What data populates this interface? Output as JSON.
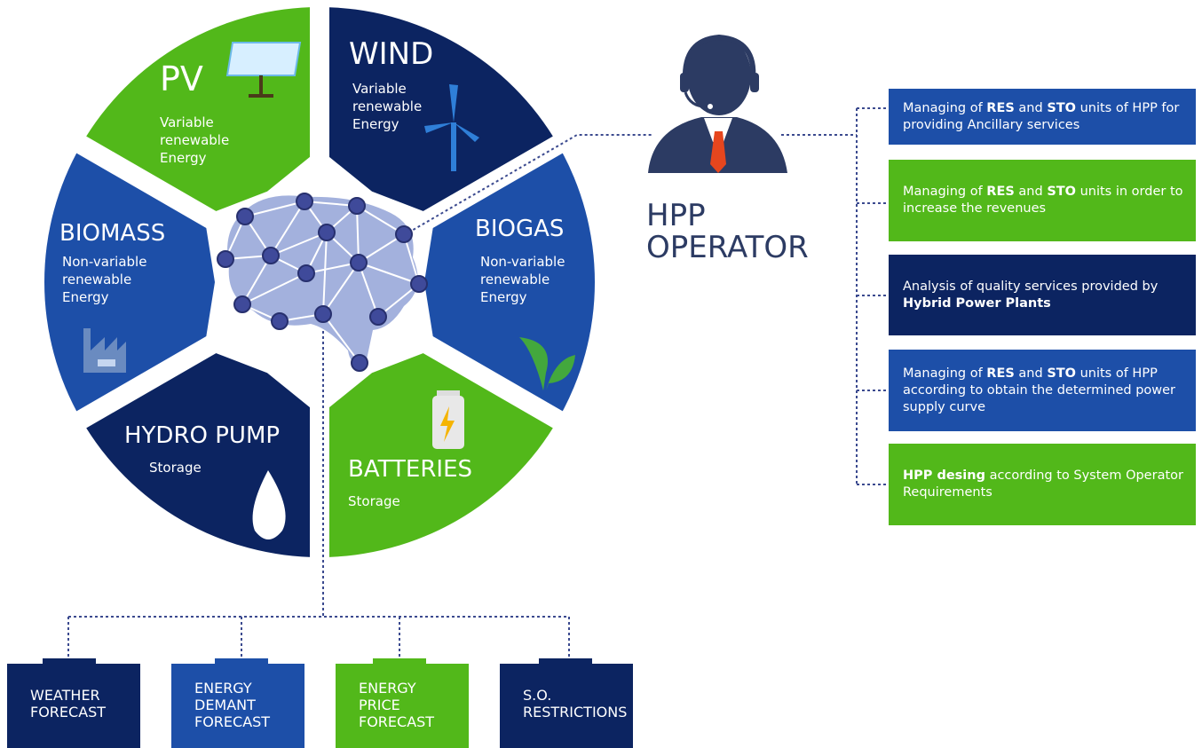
{
  "segments": [
    {
      "title": "PV",
      "lines": [
        "Variable",
        "renewable",
        "Energy"
      ],
      "color": "#52b81a"
    },
    {
      "title": "WIND",
      "lines": [
        "Variable",
        "renewable",
        "Energy"
      ],
      "color": "#0c2461"
    },
    {
      "title": "BIOGAS",
      "lines": [
        "Non-variable",
        "renewable",
        "Energy"
      ],
      "color": "#1d4fa8"
    },
    {
      "title": "BATTERIES",
      "lines": [
        "Storage"
      ],
      "color": "#52b81a"
    },
    {
      "title": "HYDRO PUMP",
      "lines": [
        "Storage"
      ],
      "color": "#0c2461"
    },
    {
      "title": "BIOMASS",
      "lines": [
        "Non-variable",
        "renewable",
        "Energy"
      ],
      "color": "#1d4fa8"
    }
  ],
  "operator": {
    "lines": [
      "HPP",
      "OPERATOR"
    ]
  },
  "services": [
    {
      "color": "#1d4fa8",
      "parts": [
        {
          "text": "Managing of "
        },
        {
          "text": "RES",
          "bold": true
        },
        {
          "text": " and "
        },
        {
          "text": "STO",
          "bold": true
        },
        {
          "text": " units of HPP for providing Ancillary services"
        }
      ]
    },
    {
      "color": "#52b81a",
      "parts": [
        {
          "text": "Managing of "
        },
        {
          "text": "RES",
          "bold": true
        },
        {
          "text": " and "
        },
        {
          "text": "STO",
          "bold": true
        },
        {
          "text": " units in order to increase the revenues"
        }
      ]
    },
    {
      "color": "#0c2461",
      "parts": [
        {
          "text": "Analysis of quality services provided by "
        },
        {
          "text": "Hybrid Power Plants",
          "bold": true
        }
      ]
    },
    {
      "color": "#1d4fa8",
      "parts": [
        {
          "text": "Managing of "
        },
        {
          "text": "RES",
          "bold": true
        },
        {
          "text": " and "
        },
        {
          "text": "STO",
          "bold": true
        },
        {
          "text": " units of HPP according to obtain the determined power supply curve"
        }
      ]
    },
    {
      "color": "#52b81a",
      "parts": [
        {
          "text": "HPP desing",
          "bold": true
        },
        {
          "text": " according to System Operator Requirements"
        }
      ]
    }
  ],
  "inputs": [
    {
      "lines": [
        "WEATHER",
        "FORECAST"
      ],
      "color": "#0c2461"
    },
    {
      "lines": [
        "ENERGY",
        "DEMANT",
        "FORECAST"
      ],
      "color": "#1d4fa8"
    },
    {
      "lines": [
        "ENERGY",
        "PRICE",
        "FORECAST"
      ],
      "color": "#52b81a"
    },
    {
      "lines": [
        "S.O.",
        "RESTRICTIONS"
      ],
      "color": "#0c2461"
    }
  ]
}
